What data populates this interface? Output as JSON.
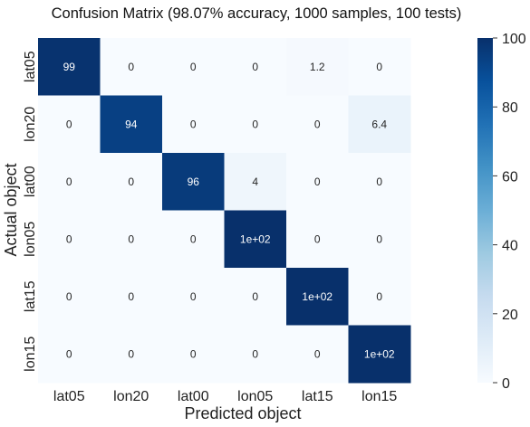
{
  "chart_data": {
    "type": "heatmap",
    "title": "Confusion Matrix (98.07% accuracy, 1000 samples, 100 tests)",
    "xlabel": "Predicted object",
    "ylabel": "Actual object",
    "x_categories": [
      "lat05",
      "lon20",
      "lat00",
      "lon05",
      "lat15",
      "lon15"
    ],
    "y_categories": [
      "lat05",
      "lon20",
      "lat00",
      "lon05",
      "lat15",
      "lon15"
    ],
    "values": [
      [
        99,
        0,
        0,
        0,
        1.2,
        0
      ],
      [
        0,
        94,
        0,
        0,
        0,
        6.4
      ],
      [
        0,
        0,
        96,
        4,
        0,
        0
      ],
      [
        0,
        0,
        0,
        100,
        0,
        0
      ],
      [
        0,
        0,
        0,
        0,
        100,
        0
      ],
      [
        0,
        0,
        0,
        0,
        0,
        100
      ]
    ],
    "cell_labels": [
      [
        "99",
        "0",
        "0",
        "0",
        "1.2",
        "0"
      ],
      [
        "0",
        "94",
        "0",
        "0",
        "0",
        "6.4"
      ],
      [
        "0",
        "0",
        "96",
        "4",
        "0",
        "0"
      ],
      [
        "0",
        "0",
        "0",
        "1e+02",
        "0",
        "0"
      ],
      [
        "0",
        "0",
        "0",
        "0",
        "1e+02",
        "0"
      ],
      [
        "0",
        "0",
        "0",
        "0",
        "0",
        "1e+02"
      ]
    ],
    "colorbar": {
      "range": [
        0,
        100
      ],
      "ticks": [
        0,
        20,
        40,
        60,
        80,
        100
      ],
      "tick_labels": [
        "0",
        "20",
        "40",
        "60",
        "80",
        "100"
      ],
      "colormap": "Blues",
      "color_low": "#f7fbff",
      "color_high": "#08306b"
    },
    "grid": false
  }
}
